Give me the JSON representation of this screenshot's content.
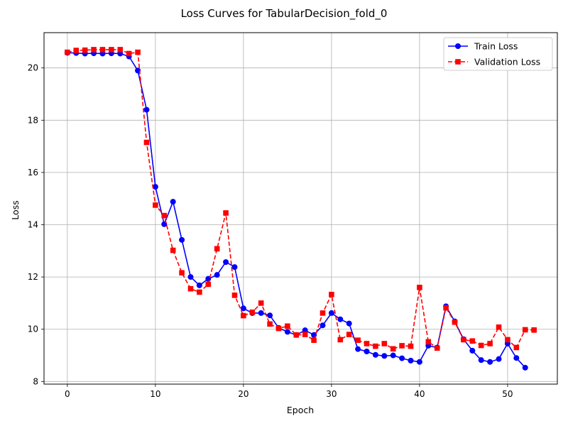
{
  "chart_data": {
    "type": "line",
    "title": "Loss Curves for TabularDecision_fold_0",
    "xlabel": "Epoch",
    "ylabel": "Loss",
    "xlim": [
      -2.65,
      55.65
    ],
    "ylim": [
      7.9,
      21.35
    ],
    "xticks": [
      0,
      10,
      20,
      30,
      40,
      50
    ],
    "yticks": [
      8,
      10,
      12,
      14,
      16,
      18,
      20
    ],
    "grid": true,
    "legend_position": "top-right",
    "series": [
      {
        "name": "Train Loss",
        "color": "#0000ff",
        "marker": "circle",
        "linestyle": "solid",
        "x": [
          0,
          1,
          2,
          3,
          4,
          5,
          6,
          7,
          8,
          9,
          10,
          11,
          12,
          13,
          14,
          15,
          16,
          17,
          18,
          19,
          20,
          21,
          22,
          23,
          24,
          25,
          26,
          27,
          28,
          29,
          30,
          31,
          32,
          33,
          34,
          35,
          36,
          37,
          38,
          39,
          40,
          41,
          42,
          43,
          44,
          45,
          46,
          47,
          48,
          49,
          50,
          51,
          52
        ],
        "y": [
          20.58,
          20.57,
          20.55,
          20.56,
          20.55,
          20.56,
          20.55,
          20.44,
          19.9,
          18.4,
          15.45,
          14.02,
          14.88,
          13.42,
          12.0,
          11.68,
          11.93,
          12.08,
          12.57,
          12.38,
          10.8,
          10.62,
          10.62,
          10.53,
          10.05,
          9.9,
          9.78,
          9.96,
          9.78,
          10.15,
          10.62,
          10.38,
          10.22,
          9.24,
          9.15,
          9.02,
          8.98,
          9.0,
          8.89,
          8.8,
          8.75,
          9.37,
          9.3,
          10.88,
          10.3,
          9.62,
          9.18,
          8.82,
          8.75,
          8.86,
          9.45,
          8.9,
          8.53
        ]
      },
      {
        "name": "Validation Loss",
        "color": "#ff0000",
        "marker": "square",
        "linestyle": "dashed",
        "x": [
          0,
          1,
          2,
          3,
          4,
          5,
          6,
          7,
          8,
          9,
          10,
          11,
          12,
          13,
          14,
          15,
          16,
          17,
          18,
          19,
          20,
          21,
          22,
          23,
          24,
          25,
          26,
          27,
          28,
          29,
          30,
          31,
          32,
          33,
          34,
          35,
          36,
          37,
          38,
          39,
          40,
          41,
          42,
          43,
          44,
          45,
          46,
          47,
          48,
          49,
          50,
          51,
          52,
          53
        ],
        "y": [
          20.6,
          20.67,
          20.68,
          20.7,
          20.7,
          20.7,
          20.7,
          20.55,
          20.6,
          17.15,
          14.75,
          14.35,
          13.02,
          12.16,
          11.55,
          11.42,
          11.72,
          13.08,
          14.45,
          11.3,
          10.52,
          10.65,
          11.0,
          10.2,
          10.03,
          10.12,
          9.78,
          9.8,
          9.58,
          10.62,
          11.33,
          9.6,
          9.8,
          9.58,
          9.45,
          9.35,
          9.45,
          9.25,
          9.37,
          9.35,
          11.6,
          9.52,
          9.28,
          10.82,
          10.27,
          9.6,
          9.55,
          9.38,
          9.45,
          10.08,
          9.6,
          9.3,
          9.98,
          9.97
        ]
      }
    ]
  }
}
